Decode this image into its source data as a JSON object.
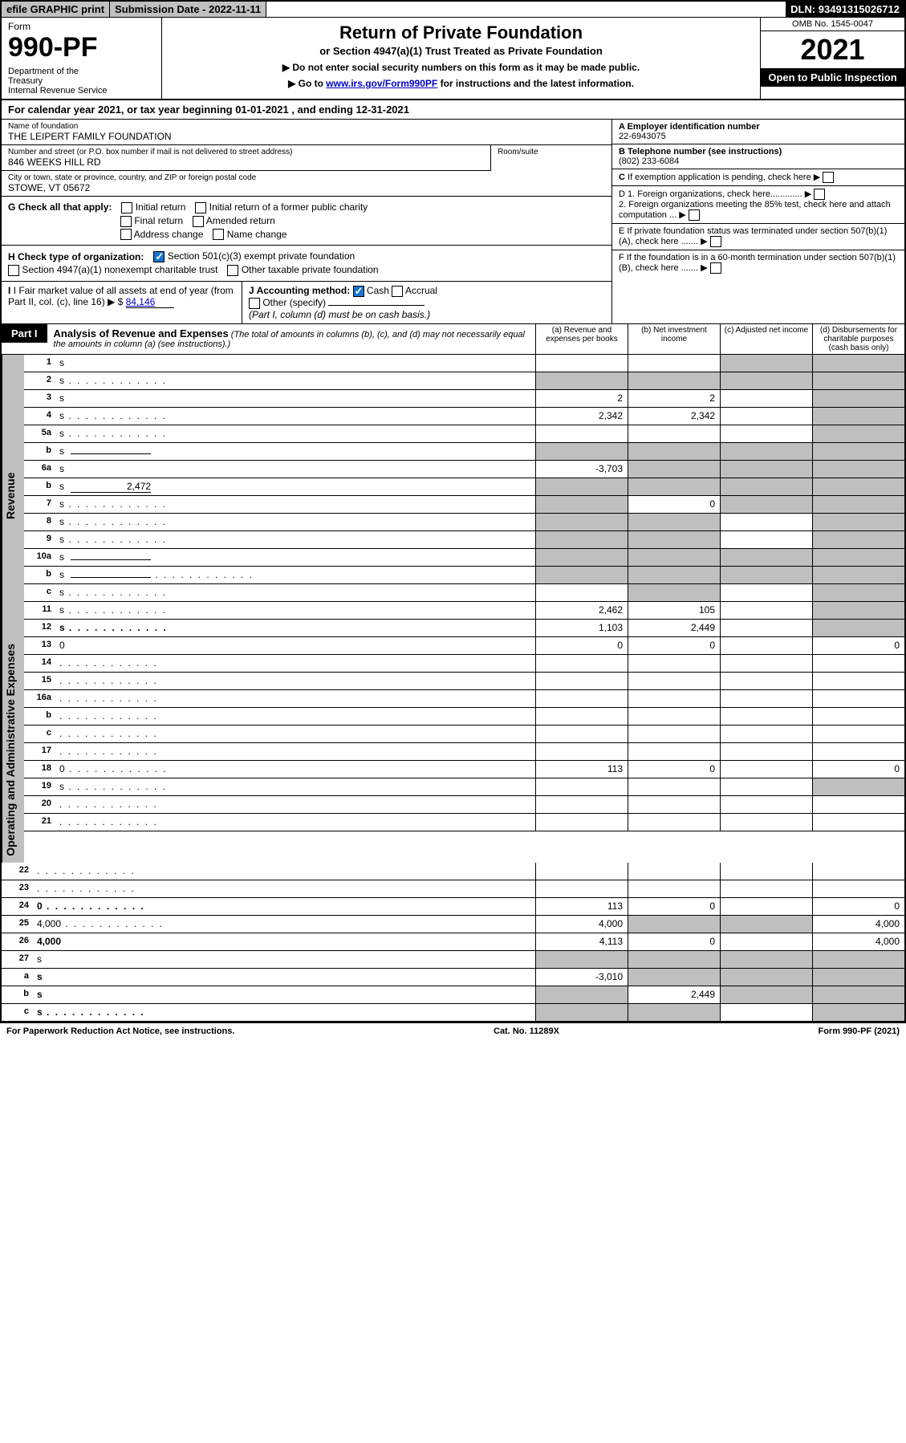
{
  "topbar": {
    "efile": "efile GRAPHIC print",
    "subdate": "Submission Date - 2022-11-11",
    "dln": "DLN: 93491315026712"
  },
  "header": {
    "form_label": "Form",
    "form_number": "990-PF",
    "dept": "Department of the Treasury\nInternal Revenue Service",
    "title": "Return of Private Foundation",
    "subtitle": "or Section 4947(a)(1) Trust Treated as Private Foundation",
    "note1": "▶ Do not enter social security numbers on this form as it may be made public.",
    "note2_pre": "▶ Go to ",
    "note2_link": "www.irs.gov/Form990PF",
    "note2_post": " for instructions and the latest information.",
    "omb": "OMB No. 1545-0047",
    "year": "2021",
    "inspection": "Open to Public Inspection"
  },
  "calendar": "For calendar year 2021, or tax year beginning 01-01-2021             , and ending 12-31-2021",
  "info": {
    "name_lbl": "Name of foundation",
    "name_val": "THE LEIPERT FAMILY FOUNDATION",
    "addr_lbl": "Number and street (or P.O. box number if mail is not delivered to street address)",
    "addr_val": "846 WEEKS HILL RD",
    "room_lbl": "Room/suite",
    "city_lbl": "City or town, state or province, country, and ZIP or foreign postal code",
    "city_val": "STOWE, VT  05672",
    "ein_lbl": "A Employer identification number",
    "ein_val": "22-6943075",
    "tel_lbl": "B Telephone number (see instructions)",
    "tel_val": "(802) 233-6084",
    "c_lbl": "C If exemption application is pending, check here",
    "d1": "D 1. Foreign organizations, check here.............",
    "d2": "2. Foreign organizations meeting the 85% test, check here and attach computation ...",
    "e": "E  If private foundation status was terminated under section 507(b)(1)(A), check here .......",
    "f": "F  If the foundation is in a 60-month termination under section 507(b)(1)(B), check here .......",
    "g_lbl": "G Check all that apply:",
    "g_initial": "Initial return",
    "g_initial_former": "Initial return of a former public charity",
    "g_final": "Final return",
    "g_amended": "Amended return",
    "g_addr": "Address change",
    "g_name": "Name change",
    "h_lbl": "H Check type of organization:",
    "h_501c3": "Section 501(c)(3) exempt private foundation",
    "h_4947": "Section 4947(a)(1) nonexempt charitable trust",
    "h_other": "Other taxable private foundation",
    "i_lbl": "I Fair market value of all assets at end of year (from Part II, col. (c), line 16)",
    "i_val": "84,146",
    "j_lbl": "J Accounting method:",
    "j_cash": "Cash",
    "j_accrual": "Accrual",
    "j_other": "Other (specify)",
    "j_note": "(Part I, column (d) must be on cash basis.)"
  },
  "part1": {
    "tab": "Part I",
    "title": "Analysis of Revenue and Expenses",
    "paren": "(The total of amounts in columns (b), (c), and (d) may not necessarily equal the amounts in column (a) (see instructions).)",
    "col_a": "(a)  Revenue and expenses per books",
    "col_b": "(b)  Net investment income",
    "col_c": "(c)  Adjusted net income",
    "col_d": "(d)  Disbursements for charitable purposes (cash basis only)"
  },
  "sidelabels": {
    "rev": "Revenue",
    "exp": "Operating and Administrative Expenses"
  },
  "lines": [
    {
      "n": "1",
      "d": "s",
      "a": "",
      "b": "",
      "c": "s"
    },
    {
      "n": "2",
      "d": "s",
      "a": "s",
      "b": "s",
      "c": "s",
      "dots": true
    },
    {
      "n": "3",
      "d": "s",
      "a": "2",
      "b": "2",
      "c": ""
    },
    {
      "n": "4",
      "d": "s",
      "a": "2,342",
      "b": "2,342",
      "c": "",
      "dots": true
    },
    {
      "n": "5a",
      "d": "s",
      "a": "",
      "b": "",
      "c": "",
      "dots": true
    },
    {
      "n": "b",
      "d": "s",
      "a": "s",
      "b": "s",
      "c": "s",
      "inline": true
    },
    {
      "n": "6a",
      "d": "s",
      "a": "-3,703",
      "b": "s",
      "c": "s"
    },
    {
      "n": "b",
      "d": "s",
      "a": "s",
      "b": "s",
      "c": "s",
      "inline": true,
      "inlineval": "2,472"
    },
    {
      "n": "7",
      "d": "s",
      "a": "s",
      "b": "0",
      "c": "s",
      "dots": true
    },
    {
      "n": "8",
      "d": "s",
      "a": "s",
      "b": "s",
      "c": "",
      "dots": true
    },
    {
      "n": "9",
      "d": "s",
      "a": "s",
      "b": "s",
      "c": "",
      "dots": true
    },
    {
      "n": "10a",
      "d": "s",
      "a": "s",
      "b": "s",
      "c": "s",
      "inline": true
    },
    {
      "n": "b",
      "d": "s",
      "a": "s",
      "b": "s",
      "c": "s",
      "inline": true,
      "dots": true
    },
    {
      "n": "c",
      "d": "s",
      "a": "",
      "b": "s",
      "c": "",
      "dots": true
    },
    {
      "n": "11",
      "d": "s",
      "a": "2,462",
      "b": "105",
      "c": "",
      "dots": true
    },
    {
      "n": "12",
      "d": "s",
      "a": "1,103",
      "b": "2,449",
      "c": "",
      "bold": true,
      "dots": true
    },
    {
      "n": "13",
      "d": "0",
      "a": "0",
      "b": "0",
      "c": ""
    },
    {
      "n": "14",
      "d": "",
      "a": "",
      "b": "",
      "c": "",
      "dots": true
    },
    {
      "n": "15",
      "d": "",
      "a": "",
      "b": "",
      "c": "",
      "dots": true
    },
    {
      "n": "16a",
      "d": "",
      "a": "",
      "b": "",
      "c": "",
      "dots": true
    },
    {
      "n": "b",
      "d": "",
      "a": "",
      "b": "",
      "c": "",
      "dots": true
    },
    {
      "n": "c",
      "d": "",
      "a": "",
      "b": "",
      "c": "",
      "dots": true
    },
    {
      "n": "17",
      "d": "",
      "a": "",
      "b": "",
      "c": "",
      "dots": true
    },
    {
      "n": "18",
      "d": "0",
      "a": "113",
      "b": "0",
      "c": "",
      "dots": true
    },
    {
      "n": "19",
      "d": "s",
      "a": "",
      "b": "",
      "c": "",
      "dots": true
    },
    {
      "n": "20",
      "d": "",
      "a": "",
      "b": "",
      "c": "",
      "dots": true
    },
    {
      "n": "21",
      "d": "",
      "a": "",
      "b": "",
      "c": "",
      "dots": true
    },
    {
      "n": "22",
      "d": "",
      "a": "",
      "b": "",
      "c": "",
      "dots": true
    },
    {
      "n": "23",
      "d": "",
      "a": "",
      "b": "",
      "c": "",
      "dots": true
    },
    {
      "n": "24",
      "d": "0",
      "a": "113",
      "b": "0",
      "c": "",
      "bold": true,
      "dots": true
    },
    {
      "n": "25",
      "d": "4,000",
      "a": "4,000",
      "b": "s",
      "c": "s",
      "dots": true
    },
    {
      "n": "26",
      "d": "4,000",
      "a": "4,113",
      "b": "0",
      "c": "",
      "bold": true
    },
    {
      "n": "27",
      "d": "s",
      "a": "s",
      "b": "s",
      "c": "s"
    },
    {
      "n": "a",
      "d": "s",
      "a": "-3,010",
      "b": "s",
      "c": "s",
      "bold": true
    },
    {
      "n": "b",
      "d": "s",
      "a": "s",
      "b": "2,449",
      "c": "s",
      "bold": true
    },
    {
      "n": "c",
      "d": "s",
      "a": "s",
      "b": "s",
      "c": "",
      "bold": true,
      "dots": true
    }
  ],
  "footer": {
    "left": "For Paperwork Reduction Act Notice, see instructions.",
    "center": "Cat. No. 11289X",
    "right": "Form 990-PF (2021)"
  }
}
